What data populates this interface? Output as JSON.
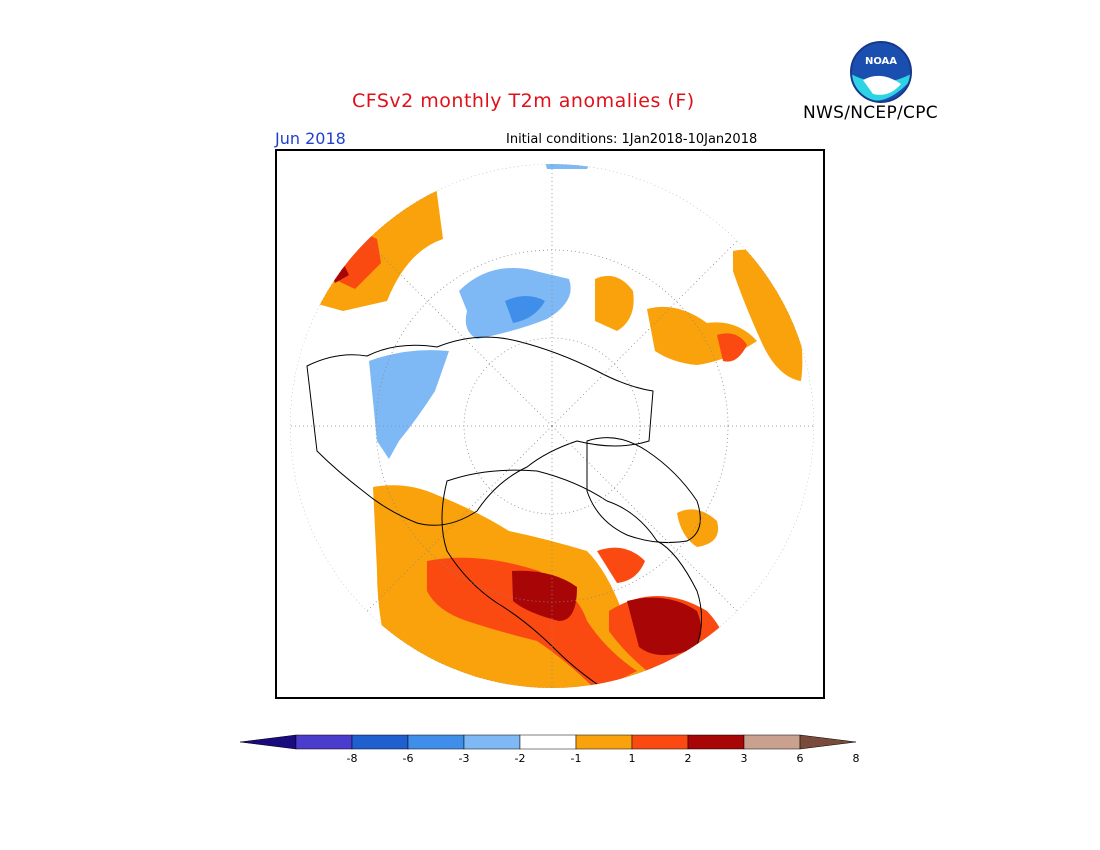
{
  "title": "CFSv2 monthly T2m anomalies (F)",
  "org": "NWS/NCEP/CPC",
  "logo_text": "NOAA",
  "month_label": "Jun 2018",
  "initial_conditions": "Initial conditions: 1Jan2018-10Jan2018",
  "legend": {
    "ticks": [
      "-8",
      "-6",
      "-3",
      "-2",
      "-1",
      "1",
      "2",
      "3",
      "6",
      "8"
    ],
    "colors": [
      "#1a0a80",
      "#4a3ccc",
      "#1f5fcf",
      "#3f8fea",
      "#7fb9f5",
      "#ffffff",
      "#f9a20c",
      "#fa4a12",
      "#a80606",
      "#caa08e",
      "#7a4a3a"
    ]
  },
  "map": {
    "projection": "north polar stereographic",
    "colors": {
      "warm_1": "#f9a20c",
      "warm_2": "#fa4a12",
      "warm_3": "#a80606",
      "cool_1": "#7fb9f5",
      "cool_2": "#3f8fea"
    }
  }
}
